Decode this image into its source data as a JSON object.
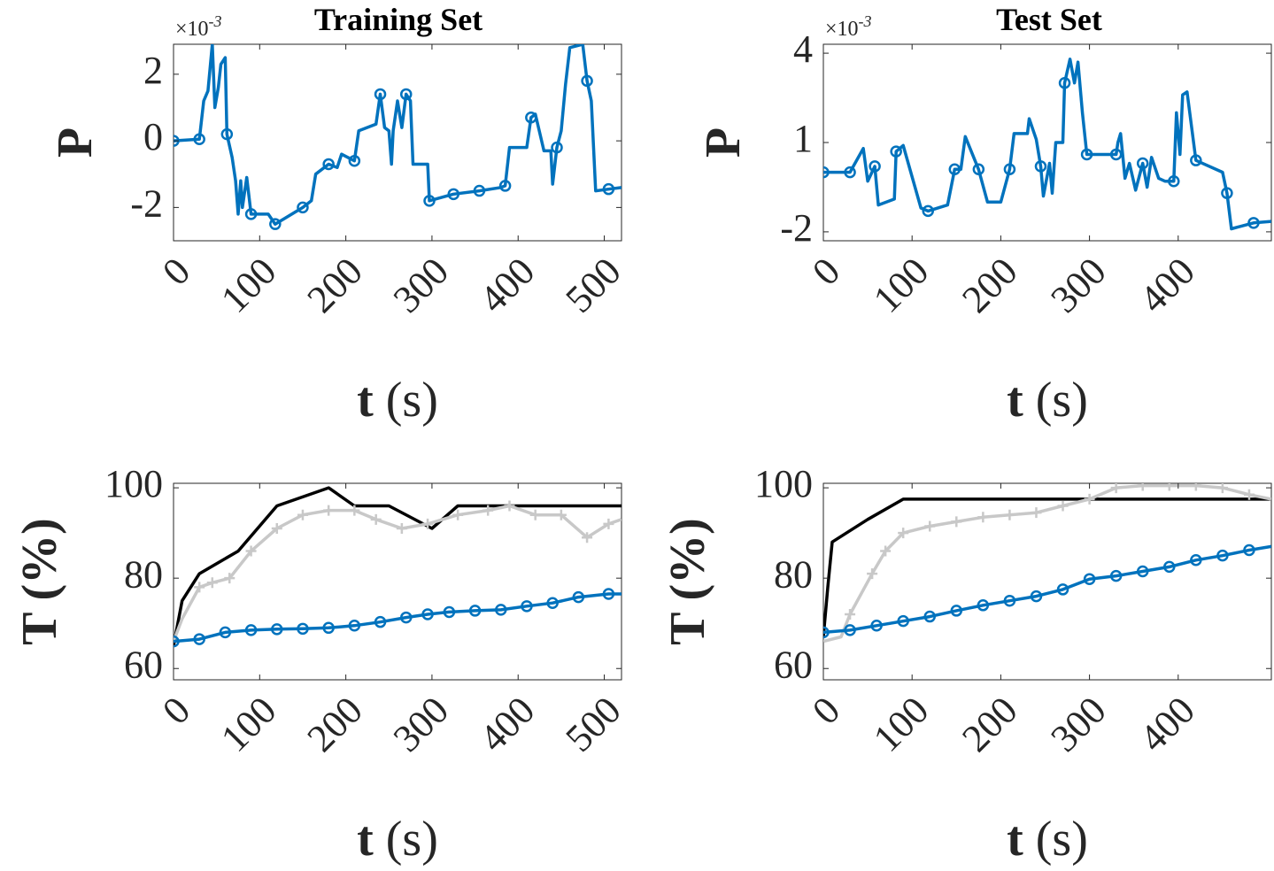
{
  "chart_data": [
    {
      "type": "line",
      "title": "Training Set",
      "xlabel_main": "t",
      "xlabel_unit": "(s)",
      "ylabel": "P",
      "y_exponent_prefix": "×10",
      "y_exponent_power": "-3",
      "xlim": [
        0,
        520
      ],
      "ylim": [
        -3.0,
        2.9
      ],
      "xticks": [
        0,
        100,
        200,
        300,
        400,
        500
      ],
      "xtick_labels": [
        "0",
        "100",
        "200",
        "300",
        "400",
        "500"
      ],
      "yticks": [
        -2,
        0,
        2
      ],
      "ytick_labels": [
        "-2",
        "0",
        "2"
      ],
      "series": [
        {
          "color": "#0072BD",
          "marker": "circle",
          "points": [
            [
              0,
              0
            ],
            [
              30,
              0.05
            ],
            [
              35,
              1.2
            ],
            [
              40,
              1.5
            ],
            [
              45,
              2.9
            ],
            [
              48,
              1.0
            ],
            [
              52,
              1.6
            ],
            [
              55,
              2.3
            ],
            [
              60,
              2.5
            ],
            [
              62,
              0.2
            ],
            [
              68,
              -0.5
            ],
            [
              72,
              -1.2
            ],
            [
              75,
              -2.2
            ],
            [
              78,
              -1.2
            ],
            [
              80,
              -2.0
            ],
            [
              85,
              -1.1
            ],
            [
              90,
              -2.2
            ],
            [
              110,
              -2.2
            ],
            [
              118,
              -2.5
            ],
            [
              150,
              -2.0
            ],
            [
              160,
              -1.8
            ],
            [
              165,
              -1.0
            ],
            [
              180,
              -0.7
            ],
            [
              190,
              -0.8
            ],
            [
              195,
              -0.4
            ],
            [
              210,
              -0.6
            ],
            [
              215,
              0.3
            ],
            [
              235,
              0.5
            ],
            [
              240,
              1.4
            ],
            [
              245,
              0.4
            ],
            [
              250,
              0.3
            ],
            [
              253,
              -0.7
            ],
            [
              255,
              0.3
            ],
            [
              260,
              1.2
            ],
            [
              265,
              0.4
            ],
            [
              270,
              1.4
            ],
            [
              275,
              1.2
            ],
            [
              278,
              -0.7
            ],
            [
              295,
              -0.7
            ],
            [
              297,
              -1.8
            ],
            [
              325,
              -1.6
            ],
            [
              355,
              -1.5
            ],
            [
              380,
              -1.4
            ],
            [
              385,
              -1.35
            ],
            [
              390,
              -0.2
            ],
            [
              410,
              -0.2
            ],
            [
              415,
              0.7
            ],
            [
              420,
              0.8
            ],
            [
              430,
              -0.3
            ],
            [
              438,
              -0.3
            ],
            [
              440,
              -1.3
            ],
            [
              445,
              -0.2
            ],
            [
              450,
              0.3
            ],
            [
              455,
              1.7
            ],
            [
              460,
              2.8
            ],
            [
              475,
              2.9
            ],
            [
              480,
              1.8
            ],
            [
              485,
              1.2
            ],
            [
              490,
              -1.5
            ],
            [
              505,
              -1.45
            ],
            [
              520,
              -1.4
            ]
          ],
          "marker_x": [
            0,
            30,
            62,
            90,
            118,
            150,
            180,
            210,
            240,
            270,
            297,
            325,
            355,
            385,
            415,
            445,
            480,
            505
          ]
        }
      ]
    },
    {
      "type": "line",
      "title": "Test Set",
      "xlabel_main": "t",
      "xlabel_unit": "(s)",
      "ylabel": "P",
      "y_exponent_prefix": "×10",
      "y_exponent_power": "-3",
      "xlim": [
        0,
        505
      ],
      "ylim": [
        -2.3,
        4.3
      ],
      "xticks": [
        0,
        100,
        200,
        300,
        400
      ],
      "xtick_labels": [
        "0",
        "100",
        "200",
        "300",
        "400"
      ],
      "yticks": [
        -2,
        1,
        4
      ],
      "ytick_labels": [
        "-2",
        "1",
        "4"
      ],
      "series": [
        {
          "color": "#0072BD",
          "marker": "circle",
          "points": [
            [
              0,
              0
            ],
            [
              30,
              0
            ],
            [
              45,
              0.8
            ],
            [
              50,
              -0.3
            ],
            [
              58,
              0.2
            ],
            [
              62,
              -1.1
            ],
            [
              80,
              -0.9
            ],
            [
              82,
              0.7
            ],
            [
              90,
              0.9
            ],
            [
              110,
              -1.2
            ],
            [
              118,
              -1.3
            ],
            [
              140,
              -1.1
            ],
            [
              148,
              0.1
            ],
            [
              155,
              0.1
            ],
            [
              160,
              1.2
            ],
            [
              175,
              0.1
            ],
            [
              185,
              -1.0
            ],
            [
              200,
              -1.0
            ],
            [
              210,
              0.1
            ],
            [
              215,
              1.3
            ],
            [
              230,
              1.3
            ],
            [
              232,
              1.8
            ],
            [
              240,
              1.1
            ],
            [
              245,
              0.2
            ],
            [
              248,
              -0.8
            ],
            [
              255,
              0.3
            ],
            [
              258,
              -0.7
            ],
            [
              262,
              1.0
            ],
            [
              270,
              1.0
            ],
            [
              272,
              3.0
            ],
            [
              278,
              3.8
            ],
            [
              283,
              3.0
            ],
            [
              287,
              3.7
            ],
            [
              292,
              2.0
            ],
            [
              297,
              0.6
            ],
            [
              330,
              0.6
            ],
            [
              332,
              1.0
            ],
            [
              335,
              1.3
            ],
            [
              340,
              -0.2
            ],
            [
              345,
              0.3
            ],
            [
              352,
              -0.6
            ],
            [
              360,
              0.3
            ],
            [
              365,
              -0.5
            ],
            [
              370,
              0.5
            ],
            [
              378,
              -0.2
            ],
            [
              385,
              -0.3
            ],
            [
              395,
              -0.3
            ],
            [
              398,
              2.0
            ],
            [
              402,
              0.6
            ],
            [
              405,
              2.6
            ],
            [
              410,
              2.7
            ],
            [
              420,
              0.4
            ],
            [
              450,
              0.0
            ],
            [
              455,
              -0.7
            ],
            [
              460,
              -1.9
            ],
            [
              485,
              -1.7
            ],
            [
              505,
              -1.65
            ]
          ],
          "marker_x": [
            0,
            30,
            58,
            82,
            118,
            148,
            175,
            210,
            245,
            272,
            297,
            330,
            360,
            395,
            420,
            455,
            485
          ]
        }
      ]
    },
    {
      "type": "line",
      "title": "",
      "xlabel_main": "t",
      "xlabel_unit": "(s)",
      "ylabel": "T (%)",
      "xlim": [
        0,
        520
      ],
      "ylim": [
        57.5,
        101
      ],
      "xticks": [
        0,
        100,
        200,
        300,
        400,
        500
      ],
      "xtick_labels": [
        "0",
        "100",
        "200",
        "300",
        "400",
        "500"
      ],
      "yticks": [
        60,
        80,
        100
      ],
      "ytick_labels": [
        "60",
        "80",
        "100"
      ],
      "series": [
        {
          "color": "#000000",
          "marker": "none",
          "points": [
            [
              0,
              65
            ],
            [
              10,
              75
            ],
            [
              30,
              81
            ],
            [
              75,
              86
            ],
            [
              120,
              96
            ],
            [
              180,
              100
            ],
            [
              210,
              96
            ],
            [
              250,
              96
            ],
            [
              300,
              91
            ],
            [
              330,
              96
            ],
            [
              520,
              96
            ]
          ]
        },
        {
          "color": "#C8C8C8",
          "marker": "plus",
          "points": [
            [
              0,
              66
            ],
            [
              10,
              71
            ],
            [
              30,
              78
            ],
            [
              45,
              79
            ],
            [
              65,
              80
            ],
            [
              90,
              86
            ],
            [
              120,
              91
            ],
            [
              150,
              94
            ],
            [
              180,
              95
            ],
            [
              210,
              95
            ],
            [
              235,
              93
            ],
            [
              265,
              91
            ],
            [
              295,
              92
            ],
            [
              330,
              94
            ],
            [
              365,
              95
            ],
            [
              390,
              96
            ],
            [
              420,
              94
            ],
            [
              450,
              94
            ],
            [
              480,
              89
            ],
            [
              505,
              92
            ],
            [
              520,
              93
            ]
          ],
          "marker_x": [
            30,
            45,
            65,
            90,
            120,
            150,
            180,
            210,
            235,
            265,
            295,
            330,
            365,
            390,
            420,
            450,
            480,
            505
          ]
        },
        {
          "color": "#0072BD",
          "marker": "circle",
          "points": [
            [
              0,
              66
            ],
            [
              30,
              66.5
            ],
            [
              60,
              68
            ],
            [
              90,
              68.5
            ],
            [
              120,
              68.7
            ],
            [
              150,
              68.8
            ],
            [
              180,
              69
            ],
            [
              210,
              69.5
            ],
            [
              240,
              70.3
            ],
            [
              270,
              71.3
            ],
            [
              295,
              72
            ],
            [
              320,
              72.5
            ],
            [
              350,
              72.8
            ],
            [
              380,
              73
            ],
            [
              410,
              73.8
            ],
            [
              440,
              74.5
            ],
            [
              470,
              75.8
            ],
            [
              505,
              76.5
            ],
            [
              520,
              76.5
            ]
          ],
          "marker_x": [
            0,
            30,
            60,
            90,
            120,
            150,
            180,
            210,
            240,
            270,
            295,
            320,
            350,
            380,
            410,
            440,
            470,
            505
          ]
        }
      ]
    },
    {
      "type": "line",
      "title": "",
      "xlabel_main": "t",
      "xlabel_unit": "(s)",
      "ylabel": "T (%)",
      "xlim": [
        0,
        505
      ],
      "ylim": [
        57.5,
        101
      ],
      "xticks": [
        0,
        100,
        200,
        300,
        400
      ],
      "xtick_labels": [
        "0",
        "100",
        "200",
        "300",
        "400"
      ],
      "yticks": [
        60,
        80,
        100
      ],
      "ytick_labels": [
        "60",
        "80",
        "100"
      ],
      "series": [
        {
          "color": "#000000",
          "marker": "none",
          "points": [
            [
              0,
              67
            ],
            [
              5,
              78
            ],
            [
              10,
              88
            ],
            [
              50,
              93
            ],
            [
              90,
              97.5
            ],
            [
              505,
              97.5
            ]
          ]
        },
        {
          "color": "#C8C8C8",
          "marker": "plus",
          "points": [
            [
              0,
              66
            ],
            [
              20,
              67
            ],
            [
              30,
              72
            ],
            [
              55,
              81
            ],
            [
              70,
              86
            ],
            [
              90,
              90
            ],
            [
              120,
              91.5
            ],
            [
              150,
              92.5
            ],
            [
              180,
              93.5
            ],
            [
              210,
              94
            ],
            [
              240,
              94.5
            ],
            [
              270,
              96
            ],
            [
              300,
              97.5
            ],
            [
              330,
              100
            ],
            [
              360,
              100.5
            ],
            [
              390,
              100.5
            ],
            [
              420,
              100.5
            ],
            [
              450,
              100
            ],
            [
              480,
              98.5
            ],
            [
              505,
              97.5
            ]
          ],
          "marker_x": [
            30,
            55,
            70,
            90,
            120,
            150,
            180,
            210,
            240,
            270,
            300,
            330,
            360,
            390,
            420,
            450,
            480
          ]
        },
        {
          "color": "#0072BD",
          "marker": "circle",
          "points": [
            [
              0,
              68
            ],
            [
              30,
              68.5
            ],
            [
              60,
              69.5
            ],
            [
              90,
              70.5
            ],
            [
              120,
              71.5
            ],
            [
              150,
              72.8
            ],
            [
              180,
              74
            ],
            [
              210,
              75
            ],
            [
              240,
              76
            ],
            [
              270,
              77.5
            ],
            [
              300,
              79.8
            ],
            [
              330,
              80.5
            ],
            [
              360,
              81.5
            ],
            [
              390,
              82.5
            ],
            [
              420,
              84
            ],
            [
              450,
              85
            ],
            [
              480,
              86.2
            ],
            [
              505,
              87
            ]
          ],
          "marker_x": [
            0,
            30,
            60,
            90,
            120,
            150,
            180,
            210,
            240,
            270,
            300,
            330,
            360,
            390,
            420,
            450,
            480
          ]
        }
      ]
    }
  ]
}
